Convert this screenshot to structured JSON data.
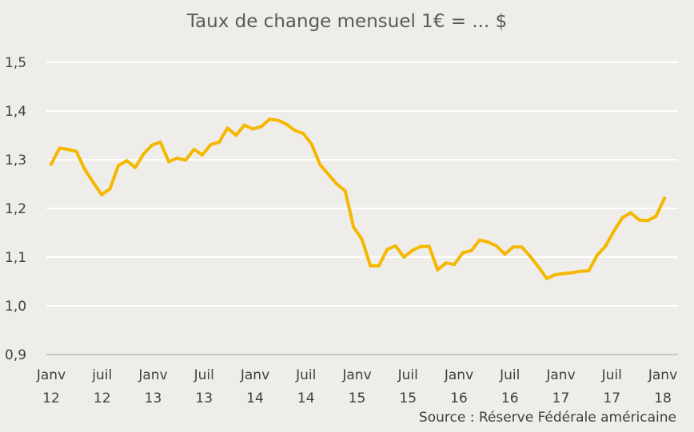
{
  "chart_data": {
    "type": "line",
    "title": "Taux de change mensuel 1€ = ... $",
    "source": "Source : Réserve Fédérale américaine",
    "ylim": [
      0.9,
      1.5
    ],
    "yticks": [
      {
        "value": 0.9,
        "label": "0,9"
      },
      {
        "value": 1.0,
        "label": "1,0"
      },
      {
        "value": 1.1,
        "label": "1,1"
      },
      {
        "value": 1.2,
        "label": "1,2"
      },
      {
        "value": 1.3,
        "label": "1,3"
      },
      {
        "value": 1.4,
        "label": "1,4"
      },
      {
        "value": 1.5,
        "label": "1,5"
      }
    ],
    "xticks": [
      {
        "label1": "Janv",
        "label2": "12"
      },
      {
        "label1": "juil",
        "label2": "12"
      },
      {
        "label1": "Janv",
        "label2": "13"
      },
      {
        "label1": "Juil",
        "label2": "13"
      },
      {
        "label1": "Janv",
        "label2": "14"
      },
      {
        "label1": "Juil",
        "label2": "14"
      },
      {
        "label1": "Janv",
        "label2": "15"
      },
      {
        "label1": "Juil",
        "label2": "15"
      },
      {
        "label1": "Janv",
        "label2": "16"
      },
      {
        "label1": "Juil",
        "label2": "16"
      },
      {
        "label1": "Janv",
        "label2": "17"
      },
      {
        "label1": "Juil",
        "label2": "17"
      },
      {
        "label1": "Janv",
        "label2": "18"
      }
    ],
    "grid": true,
    "line_color": "#f5b800",
    "series": [
      {
        "values": [
          1.291,
          1.324,
          1.321,
          1.317,
          1.28,
          1.254,
          1.228,
          1.24,
          1.288,
          1.298,
          1.284,
          1.312,
          1.33,
          1.336,
          1.296,
          1.303,
          1.299,
          1.321,
          1.31,
          1.331,
          1.336,
          1.365,
          1.35,
          1.371,
          1.363,
          1.368,
          1.383,
          1.381,
          1.373,
          1.36,
          1.354,
          1.332,
          1.29,
          1.27,
          1.25,
          1.236,
          1.162,
          1.136,
          1.082,
          1.082,
          1.116,
          1.123,
          1.1,
          1.114,
          1.122,
          1.122,
          1.074,
          1.088,
          1.085,
          1.109,
          1.113,
          1.135,
          1.131,
          1.123,
          1.106,
          1.121,
          1.121,
          1.102,
          1.08,
          1.056,
          1.064,
          1.066,
          1.068,
          1.071,
          1.072,
          1.104,
          1.123,
          1.154,
          1.181,
          1.191,
          1.176,
          1.175,
          1.184,
          1.221
        ]
      }
    ]
  }
}
